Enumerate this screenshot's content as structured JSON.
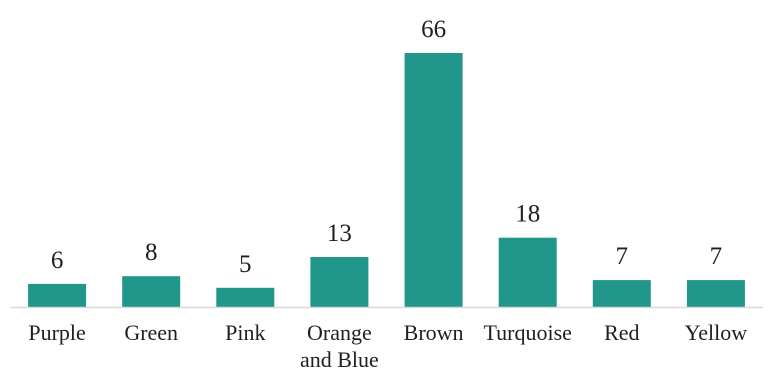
{
  "chart_data": {
    "type": "bar",
    "categories": [
      "Purple",
      "Green",
      "Pink",
      "Orange and Blue",
      "Brown",
      "Turquoise",
      "Red",
      "Yellow"
    ],
    "category_lines": [
      [
        "Purple"
      ],
      [
        "Green"
      ],
      [
        "Pink"
      ],
      [
        "Orange",
        "and Blue"
      ],
      [
        "Brown"
      ],
      [
        "Turquoise"
      ],
      [
        "Red"
      ],
      [
        "Yellow"
      ]
    ],
    "values": [
      6,
      8,
      5,
      13,
      66,
      18,
      7,
      7
    ],
    "value_labels": [
      "6",
      "8",
      "5",
      "13",
      "66",
      "18",
      "7",
      "7"
    ],
    "title": "",
    "xlabel": "",
    "ylabel": "",
    "ylim": [
      0,
      66
    ],
    "grid": false,
    "legend": "none",
    "bar_color": "#21968a",
    "axis_color": "#d9d9d9"
  }
}
